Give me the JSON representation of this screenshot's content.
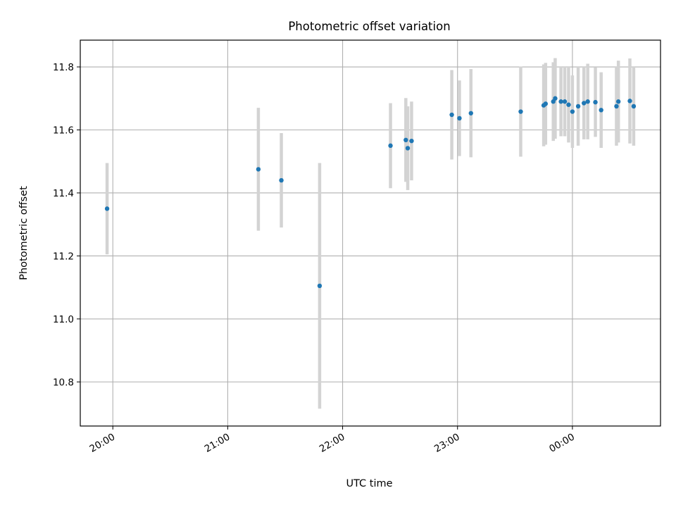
{
  "chart_data": {
    "type": "scatter",
    "title": "Photometric offset variation",
    "xlabel": "UTC time",
    "ylabel": "Photometric offset",
    "x_unit": "UTC time of night",
    "xlim": [
      "19:43",
      "24:46"
    ],
    "ylim": [
      10.66,
      11.885
    ],
    "grid": true,
    "x_ticks": [
      {
        "value": "20:00",
        "label": "20:00"
      },
      {
        "value": "21:00",
        "label": "21:00"
      },
      {
        "value": "22:00",
        "label": "22:00"
      },
      {
        "value": "23:00",
        "label": "23:00"
      },
      {
        "value": "24:00",
        "label": "00:00"
      }
    ],
    "y_ticks": [
      "10.8",
      "11.0",
      "11.2",
      "11.4",
      "11.6",
      "11.8"
    ],
    "colors": {
      "points": "#1f77b4",
      "errorbars": "#d3d3d3",
      "grid": "#b0b0b0"
    },
    "points": [
      {
        "x": "19:57",
        "y": 11.35,
        "err": 0.145
      },
      {
        "x": "21:16",
        "y": 11.475,
        "err": 0.195
      },
      {
        "x": "21:28",
        "y": 11.44,
        "err": 0.15
      },
      {
        "x": "21:48",
        "y": 11.105,
        "err": 0.39
      },
      {
        "x": "22:25",
        "y": 11.55,
        "err": 0.135
      },
      {
        "x": "22:33",
        "y": 11.568,
        "err": 0.133
      },
      {
        "x": "22:34",
        "y": 11.542,
        "err": 0.133
      },
      {
        "x": "22:36",
        "y": 11.565,
        "err": 0.125
      },
      {
        "x": "22:57",
        "y": 11.648,
        "err": 0.142
      },
      {
        "x": "23:01",
        "y": 11.637,
        "err": 0.12
      },
      {
        "x": "23:07",
        "y": 11.653,
        "err": 0.14
      },
      {
        "x": "23:33",
        "y": 11.658,
        "err": 0.143
      },
      {
        "x": "23:45",
        "y": 11.678,
        "err": 0.13
      },
      {
        "x": "23:46",
        "y": 11.683,
        "err": 0.13
      },
      {
        "x": "23:50",
        "y": 11.69,
        "err": 0.125
      },
      {
        "x": "23:51",
        "y": 11.7,
        "err": 0.128
      },
      {
        "x": "23:54",
        "y": 11.69,
        "err": 0.11
      },
      {
        "x": "23:56",
        "y": 11.69,
        "err": 0.11
      },
      {
        "x": "23:58",
        "y": 11.68,
        "err": 0.12
      },
      {
        "x": "24:00",
        "y": 11.658,
        "err": 0.115
      },
      {
        "x": "24:03",
        "y": 11.675,
        "err": 0.125
      },
      {
        "x": "24:06",
        "y": 11.685,
        "err": 0.115
      },
      {
        "x": "24:08",
        "y": 11.69,
        "err": 0.12
      },
      {
        "x": "24:12",
        "y": 11.688,
        "err": 0.11
      },
      {
        "x": "24:15",
        "y": 11.663,
        "err": 0.12
      },
      {
        "x": "24:23",
        "y": 11.675,
        "err": 0.125
      },
      {
        "x": "24:24",
        "y": 11.69,
        "err": 0.13
      },
      {
        "x": "24:30",
        "y": 11.692,
        "err": 0.135
      },
      {
        "x": "24:32",
        "y": 11.675,
        "err": 0.125
      }
    ]
  }
}
